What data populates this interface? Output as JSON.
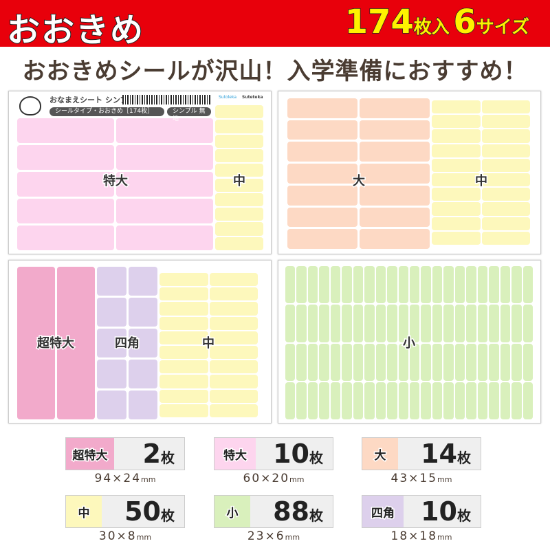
{
  "header": {
    "title": "おおきめ",
    "count": "174",
    "count_unit": "枚入",
    "sizes": "6",
    "sizes_unit": "サイズ"
  },
  "subtitle": "おおきめシールが沢山！入学準備におすすめ！",
  "sheet_meta": {
    "name": "おなまえシート シンプル",
    "type": "シールタイプ・おおきめ［174枚］",
    "style": "シンプル 無地",
    "brand1": "Sutoleka",
    "brand2": "Suteteka"
  },
  "sheets": {
    "s1": [
      "特大",
      "中"
    ],
    "s2": [
      "大",
      "中"
    ],
    "s3": [
      "超特大",
      "四角",
      "中"
    ],
    "s4": [
      "小"
    ]
  },
  "colors": {
    "xl": "#f2aacb",
    "l": "#fdd5ee",
    "m": "#fdd9c4",
    "s": "#fdf8bc",
    "xs": "#d9f0bc",
    "sq": "#ddd0ec"
  },
  "badges": [
    {
      "label": "超特大",
      "count": "2",
      "unit": "枚",
      "dim": "94×24",
      "mm": "mm",
      "color": "#f2aacb"
    },
    {
      "label": "特大",
      "count": "10",
      "unit": "枚",
      "dim": "60×20",
      "mm": "mm",
      "color": "#fdd5ee"
    },
    {
      "label": "大",
      "count": "14",
      "unit": "枚",
      "dim": "43×15",
      "mm": "mm",
      "color": "#fdd9c4"
    },
    {
      "label": "中",
      "count": "50",
      "unit": "枚",
      "dim": "30×8",
      "mm": "mm",
      "color": "#fdf8bc"
    },
    {
      "label": "小",
      "count": "88",
      "unit": "枚",
      "dim": "23×6",
      "mm": "mm",
      "color": "#d9f0bc"
    },
    {
      "label": "四角",
      "count": "10",
      "unit": "枚",
      "dim": "18×18",
      "mm": "mm",
      "color": "#ddd0ec"
    }
  ]
}
